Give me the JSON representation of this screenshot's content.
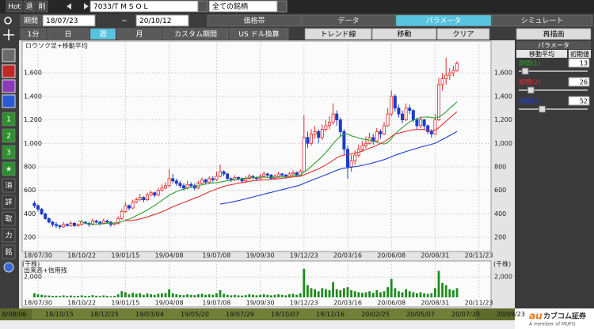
{
  "header": {
    "hot": "Hot",
    "exit": "退",
    "delete": "削",
    "symbol": "7033/T M S O L",
    "universe": "全ての銘柄",
    "period_label": "期間",
    "start_date": "18/07/23",
    "tilde": "~",
    "end_date": "20/10/12"
  },
  "tabs": [
    "価格帯",
    "データ",
    "パラメータ",
    "シミュレート"
  ],
  "interval_buttons": [
    "1分",
    "日",
    "週",
    "月",
    "カスタム期間",
    "US ドル換算"
  ],
  "tool_buttons": [
    "トレンド線",
    "移動",
    "クリア"
  ],
  "redraw": "再描画",
  "side_buttons": [
    "1",
    "2",
    "3",
    "★",
    "消",
    "詳",
    "取",
    "力",
    "銘"
  ],
  "parameter_panel": {
    "title": "パラメータ",
    "section": "移動平均",
    "column": "初期値"
  },
  "chart_data": [
    {
      "type": "candlestick",
      "title": "ロウソク足+移動平均",
      "up_color": "#e02828",
      "down_color": "#1c3cc8",
      "grid": true,
      "categories": [
        null,
        "18/07/30",
        null,
        null,
        null,
        null,
        null,
        null,
        null,
        null,
        null,
        null,
        null,
        "18/10/22",
        null,
        null,
        null,
        null,
        null,
        null,
        null,
        null,
        null,
        null,
        null,
        "19/01/15",
        null,
        null,
        null,
        null,
        null,
        null,
        null,
        null,
        null,
        null,
        null,
        "19/04/08",
        null,
        null,
        null,
        null,
        null,
        null,
        null,
        null,
        null,
        null,
        null,
        null,
        "19/07/08",
        null,
        null,
        null,
        null,
        null,
        null,
        null,
        null,
        null,
        null,
        null,
        "19/09/30",
        null,
        null,
        null,
        null,
        null,
        null,
        null,
        null,
        null,
        null,
        null,
        "19/12/23",
        null,
        null,
        null,
        null,
        null,
        null,
        null,
        null,
        null,
        null,
        null,
        "20/03/16",
        null,
        null,
        null,
        null,
        null,
        null,
        null,
        null,
        null,
        null,
        null,
        "20/06/08",
        null,
        null,
        null,
        null,
        null,
        null,
        null,
        null,
        null,
        null,
        null,
        "20/08/31",
        null,
        null,
        null,
        null,
        null,
        null,
        null,
        null,
        null,
        null,
        null,
        "20/11/23"
      ],
      "values": [
        [
          490,
          510,
          450,
          470
        ],
        [
          470,
          480,
          420,
          440
        ],
        [
          440,
          450,
          390,
          400
        ],
        [
          400,
          410,
          350,
          360
        ],
        [
          360,
          370,
          320,
          330
        ],
        [
          330,
          340,
          290,
          310
        ],
        [
          310,
          330,
          280,
          300
        ],
        [
          300,
          310,
          270,
          290
        ],
        [
          290,
          330,
          280,
          310
        ],
        [
          310,
          320,
          290,
          300
        ],
        [
          300,
          340,
          290,
          320
        ],
        [
          320,
          330,
          290,
          300
        ],
        [
          300,
          320,
          290,
          310
        ],
        [
          310,
          350,
          300,
          330
        ],
        [
          330,
          340,
          310,
          320
        ],
        [
          320,
          330,
          290,
          310
        ],
        [
          310,
          360,
          300,
          340
        ],
        [
          340,
          350,
          320,
          330
        ],
        [
          330,
          340,
          300,
          320
        ],
        [
          320,
          360,
          310,
          340
        ],
        [
          340,
          350,
          320,
          330
        ],
        [
          330,
          340,
          290,
          310
        ],
        [
          310,
          330,
          300,
          320
        ],
        [
          320,
          380,
          310,
          360
        ],
        [
          360,
          440,
          350,
          420
        ],
        [
          420,
          500,
          410,
          470
        ],
        [
          470,
          480,
          430,
          450
        ],
        [
          450,
          520,
          440,
          500
        ],
        [
          500,
          540,
          490,
          520
        ],
        [
          520,
          570,
          510,
          540
        ],
        [
          540,
          550,
          500,
          520
        ],
        [
          520,
          580,
          510,
          560
        ],
        [
          560,
          600,
          550,
          580
        ],
        [
          580,
          590,
          540,
          560
        ],
        [
          560,
          620,
          550,
          600
        ],
        [
          600,
          650,
          590,
          620
        ],
        [
          620,
          670,
          610,
          640
        ],
        [
          640,
          780,
          630,
          700
        ],
        [
          700,
          740,
          660,
          680
        ],
        [
          680,
          700,
          640,
          660
        ],
        [
          660,
          680,
          620,
          640
        ],
        [
          640,
          660,
          600,
          620
        ],
        [
          620,
          680,
          610,
          650
        ],
        [
          650,
          670,
          620,
          640
        ],
        [
          640,
          660,
          600,
          620
        ],
        [
          620,
          680,
          610,
          660
        ],
        [
          660,
          710,
          650,
          690
        ],
        [
          690,
          700,
          650,
          670
        ],
        [
          670,
          720,
          660,
          700
        ],
        [
          700,
          720,
          670,
          690
        ],
        [
          690,
          760,
          680,
          720
        ],
        [
          720,
          820,
          710,
          760
        ],
        [
          760,
          770,
          720,
          740
        ],
        [
          740,
          750,
          690,
          700
        ],
        [
          700,
          710,
          670,
          690
        ],
        [
          690,
          730,
          680,
          710
        ],
        [
          710,
          720,
          680,
          700
        ],
        [
          700,
          710,
          660,
          680
        ],
        [
          680,
          720,
          670,
          700
        ],
        [
          700,
          740,
          690,
          720
        ],
        [
          720,
          730,
          690,
          710
        ],
        [
          710,
          720,
          680,
          700
        ],
        [
          700,
          740,
          690,
          720
        ],
        [
          720,
          760,
          710,
          740
        ],
        [
          740,
          750,
          710,
          730
        ],
        [
          730,
          740,
          690,
          700
        ],
        [
          700,
          740,
          690,
          720
        ],
        [
          720,
          760,
          710,
          740
        ],
        [
          740,
          750,
          710,
          730
        ],
        [
          730,
          740,
          700,
          720
        ],
        [
          720,
          760,
          710,
          740
        ],
        [
          740,
          770,
          730,
          750
        ],
        [
          750,
          760,
          720,
          730
        ],
        [
          730,
          780,
          720,
          760
        ],
        [
          760,
          1240,
          750,
          1050
        ],
        [
          1050,
          1100,
          960,
          1000
        ],
        [
          1000,
          1120,
          980,
          1080
        ],
        [
          1080,
          1150,
          1040,
          1100
        ],
        [
          1100,
          1120,
          1000,
          1050
        ],
        [
          1050,
          1160,
          1030,
          1120
        ],
        [
          1120,
          1200,
          1100,
          1150
        ],
        [
          1150,
          1230,
          1120,
          1180
        ],
        [
          1180,
          1340,
          1160,
          1250
        ],
        [
          1250,
          1280,
          1150,
          1200
        ],
        [
          1200,
          1220,
          1060,
          1100
        ],
        [
          1100,
          1120,
          900,
          950
        ],
        [
          950,
          980,
          700,
          800
        ],
        [
          800,
          900,
          760,
          850
        ],
        [
          850,
          940,
          820,
          900
        ],
        [
          900,
          990,
          880,
          950
        ],
        [
          950,
          1020,
          930,
          980
        ],
        [
          980,
          1060,
          960,
          1000
        ],
        [
          1000,
          1090,
          990,
          1050
        ],
        [
          1050,
          1080,
          990,
          1020
        ],
        [
          1020,
          1130,
          1010,
          1100
        ],
        [
          1100,
          1120,
          1040,
          1080
        ],
        [
          1080,
          1180,
          1070,
          1150
        ],
        [
          1150,
          1300,
          1140,
          1250
        ],
        [
          1250,
          1450,
          1230,
          1400
        ],
        [
          1400,
          1420,
          1270,
          1300
        ],
        [
          1300,
          1330,
          1220,
          1250
        ],
        [
          1250,
          1280,
          1170,
          1200
        ],
        [
          1200,
          1340,
          1190,
          1300
        ],
        [
          1300,
          1330,
          1250,
          1280
        ],
        [
          1280,
          1290,
          1180,
          1200
        ],
        [
          1200,
          1220,
          1120,
          1150
        ],
        [
          1150,
          1230,
          1130,
          1200
        ],
        [
          1200,
          1210,
          1120,
          1150
        ],
        [
          1150,
          1160,
          1080,
          1100
        ],
        [
          1100,
          1120,
          1050,
          1080
        ],
        [
          1080,
          1250,
          1070,
          1200
        ],
        [
          1200,
          1560,
          1190,
          1500
        ],
        [
          1500,
          1600,
          1450,
          1550
        ],
        [
          1550,
          1730,
          1500,
          1580
        ],
        [
          1580,
          1640,
          1540,
          1600
        ],
        [
          1600,
          1660,
          1570,
          1620
        ],
        [
          1620,
          1700,
          1610,
          1680
        ],
        null,
        null,
        null,
        null,
        null,
        null
      ],
      "ylim": [
        100,
        1850
      ],
      "yticks": [
        200,
        400,
        600,
        800,
        {
          "value": 1000,
          "label": "1,000"
        },
        {
          "value": 1200,
          "label": "1,200"
        },
        {
          "value": 1400,
          "label": "1,400"
        },
        {
          "value": 1600,
          "label": "1,600"
        }
      ],
      "moving_averages": [
        {
          "name": "期間(1)",
          "period": 13,
          "color": "#2f9e2f"
        },
        {
          "name": "期間(2)",
          "period": 26,
          "color": "#e03030"
        },
        {
          "name": "期間(3)",
          "period": 52,
          "color": "#2040d0"
        }
      ]
    },
    {
      "type": "bar",
      "title": "出来高+信用残",
      "unit": "(千株)",
      "color": "#1e8c1e",
      "grid": true,
      "categories": [
        null,
        "18/07/30",
        null,
        null,
        null,
        null,
        null,
        null,
        null,
        null,
        null,
        null,
        null,
        "18/10/22",
        null,
        null,
        null,
        null,
        null,
        null,
        null,
        null,
        null,
        null,
        null,
        "19/01/15",
        null,
        null,
        null,
        null,
        null,
        null,
        null,
        null,
        null,
        null,
        null,
        "19/04/08",
        null,
        null,
        null,
        null,
        null,
        null,
        null,
        null,
        null,
        null,
        null,
        null,
        "19/07/08",
        null,
        null,
        null,
        null,
        null,
        null,
        null,
        null,
        null,
        null,
        null,
        "19/09/30",
        null,
        null,
        null,
        null,
        null,
        null,
        null,
        null,
        null,
        null,
        null,
        "19/12/23",
        null,
        null,
        null,
        null,
        null,
        null,
        null,
        null,
        null,
        null,
        null,
        "20/03/16",
        null,
        null,
        null,
        null,
        null,
        null,
        null,
        null,
        null,
        null,
        null,
        "20/06/08",
        null,
        null,
        null,
        null,
        null,
        null,
        null,
        null,
        null,
        null,
        null,
        "20/08/31",
        null,
        null,
        null,
        null,
        null,
        null,
        null,
        null,
        null,
        null,
        null,
        "20/11/23"
      ],
      "values": [
        400,
        300,
        250,
        200,
        180,
        150,
        160,
        140,
        200,
        150,
        180,
        140,
        150,
        200,
        150,
        140,
        220,
        160,
        140,
        200,
        150,
        120,
        150,
        300,
        600,
        500,
        300,
        450,
        350,
        400,
        250,
        380,
        300,
        250,
        350,
        400,
        420,
        800,
        400,
        300,
        250,
        220,
        300,
        250,
        220,
        300,
        350,
        250,
        300,
        250,
        400,
        700,
        350,
        250,
        200,
        250,
        200,
        180,
        220,
        300,
        250,
        200,
        250,
        300,
        250,
        200,
        250,
        300,
        250,
        200,
        300,
        350,
        250,
        400,
        2800,
        1200,
        900,
        800,
        600,
        900,
        800,
        700,
        1500,
        800,
        700,
        900,
        1000,
        700,
        600,
        500,
        450,
        500,
        600,
        450,
        700,
        500,
        600,
        1000,
        1800,
        900,
        600,
        500,
        800,
        600,
        500,
        400,
        500,
        400,
        350,
        400,
        900,
        2600,
        1400,
        1200,
        800,
        700,
        900,
        null,
        null,
        null,
        null,
        null,
        null
      ],
      "ylim": [
        0,
        3100
      ],
      "yticks": [
        {
          "value": 2000,
          "label": "2,000"
        }
      ]
    }
  ],
  "scroll_dates": [
    "8/08/06",
    "18/10/15",
    "18/12/25",
    "19/03/04",
    "19/05/20",
    "19/07/29",
    "19/10/07",
    "19/12/16",
    "20/02/25",
    "20/05/07",
    "20/07/20",
    "20/09/23"
  ],
  "logo": {
    "brand": "au",
    "name": "カブコム証券",
    "member": "A member of MUFG"
  }
}
